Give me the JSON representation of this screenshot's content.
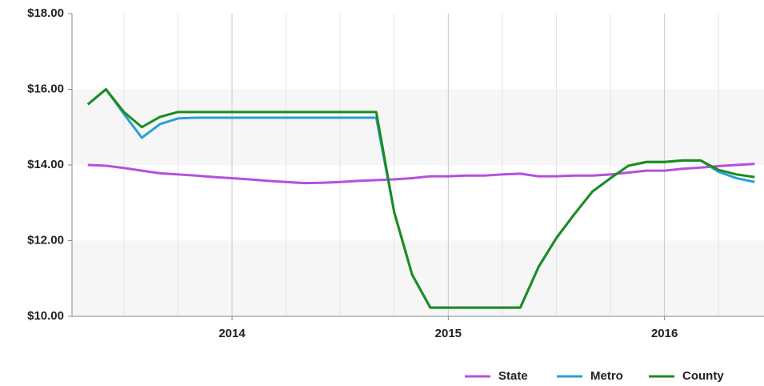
{
  "chart_data": {
    "type": "line",
    "x": [
      2013.333,
      2013.417,
      2013.5,
      2013.583,
      2013.667,
      2013.75,
      2013.833,
      2013.917,
      2014,
      2014.083,
      2014.167,
      2014.25,
      2014.333,
      2014.417,
      2014.5,
      2014.583,
      2014.667,
      2014.75,
      2014.833,
      2014.917,
      2015,
      2015.083,
      2015.167,
      2015.25,
      2015.333,
      2015.417,
      2015.5,
      2015.583,
      2015.667,
      2015.75,
      2015.833,
      2015.917,
      2016,
      2016.083,
      2016.167,
      2016.25,
      2016.333,
      2016.417
    ],
    "series": [
      {
        "name": "State",
        "color": "#b64fdf",
        "values": [
          14.0,
          13.98,
          13.92,
          13.85,
          13.78,
          13.75,
          13.72,
          13.68,
          13.65,
          13.62,
          13.58,
          13.55,
          13.52,
          13.53,
          13.55,
          13.58,
          13.6,
          13.62,
          13.65,
          13.7,
          13.7,
          13.72,
          13.72,
          13.75,
          13.77,
          13.7,
          13.7,
          13.72,
          13.72,
          13.75,
          13.8,
          13.85,
          13.85,
          13.9,
          13.93,
          13.97,
          14.0,
          14.03
        ]
      },
      {
        "name": "Metro",
        "color": "#2a9fd8",
        "values": [
          15.6,
          16.0,
          15.35,
          14.72,
          15.08,
          15.23,
          15.25,
          15.25,
          15.25,
          15.25,
          15.25,
          15.25,
          15.25,
          15.25,
          15.25,
          15.25,
          15.25,
          12.75,
          11.1,
          10.23,
          10.23,
          10.23,
          10.23,
          10.23,
          10.23,
          11.3,
          12.07,
          12.7,
          13.3,
          13.65,
          13.98,
          14.08,
          14.08,
          14.12,
          14.12,
          13.82,
          13.65,
          13.55
        ]
      },
      {
        "name": "County",
        "color": "#1c8c1c",
        "values": [
          15.6,
          16.0,
          15.4,
          15.0,
          15.27,
          15.4,
          15.4,
          15.4,
          15.4,
          15.4,
          15.4,
          15.4,
          15.4,
          15.4,
          15.4,
          15.4,
          15.4,
          12.75,
          11.1,
          10.23,
          10.23,
          10.23,
          10.23,
          10.23,
          10.23,
          11.3,
          12.07,
          12.7,
          13.3,
          13.65,
          13.98,
          14.08,
          14.08,
          14.12,
          14.12,
          13.87,
          13.75,
          13.68
        ]
      }
    ],
    "xlim": [
      2013.26,
      2016.46
    ],
    "xticks": [
      2014,
      2015,
      2016
    ],
    "ylim": [
      10,
      18
    ],
    "yticks": [
      {
        "value": 10,
        "label": "$10.00"
      },
      {
        "value": 12,
        "label": "$12.00"
      },
      {
        "value": 14,
        "label": "$14.00"
      },
      {
        "value": 16,
        "label": "$16.00"
      },
      {
        "value": 18,
        "label": "$18.00"
      }
    ],
    "grid": true,
    "legend": "bottom-right"
  }
}
